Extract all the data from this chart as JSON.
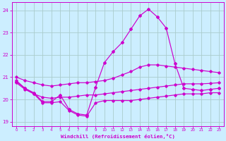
{
  "xlabel": "Windchill (Refroidissement éolien,°C)",
  "background_color": "#cceeff",
  "grid_color": "#aacccc",
  "line_color": "#cc00cc",
  "xlim": [
    -0.5,
    23.5
  ],
  "ylim": [
    18.8,
    24.35
  ],
  "yticks": [
    19,
    20,
    21,
    22,
    23,
    24
  ],
  "xticks": [
    0,
    1,
    2,
    3,
    4,
    5,
    6,
    7,
    8,
    9,
    10,
    11,
    12,
    13,
    14,
    15,
    16,
    17,
    18,
    19,
    20,
    21,
    22,
    23
  ],
  "line_min_y": [
    20.75,
    20.45,
    20.25,
    19.85,
    19.85,
    19.9,
    19.5,
    19.3,
    19.25,
    19.85,
    19.95,
    19.95,
    19.95,
    19.95,
    20.0,
    20.05,
    20.1,
    20.15,
    20.2,
    20.25,
    20.25,
    20.25,
    20.3,
    20.3
  ],
  "line_mid_y": [
    20.85,
    20.5,
    20.25,
    20.1,
    20.05,
    20.1,
    20.1,
    20.15,
    20.2,
    20.2,
    20.25,
    20.3,
    20.35,
    20.4,
    20.45,
    20.5,
    20.55,
    20.6,
    20.65,
    20.7,
    20.7,
    20.7,
    20.72,
    20.75
  ],
  "line_top_y": [
    21.0,
    20.85,
    20.75,
    20.65,
    20.6,
    20.65,
    20.7,
    20.75,
    20.75,
    20.8,
    20.85,
    20.95,
    21.1,
    21.25,
    21.45,
    21.55,
    21.55,
    21.5,
    21.45,
    21.4,
    21.35,
    21.3,
    21.25,
    21.2
  ],
  "line_spike_y": [
    20.8,
    20.5,
    20.3,
    19.9,
    19.9,
    20.2,
    19.55,
    19.35,
    19.3,
    20.55,
    21.65,
    22.15,
    22.55,
    23.15,
    23.75,
    24.05,
    23.7,
    23.2,
    21.6,
    20.5,
    20.45,
    20.4,
    20.45,
    20.5
  ]
}
